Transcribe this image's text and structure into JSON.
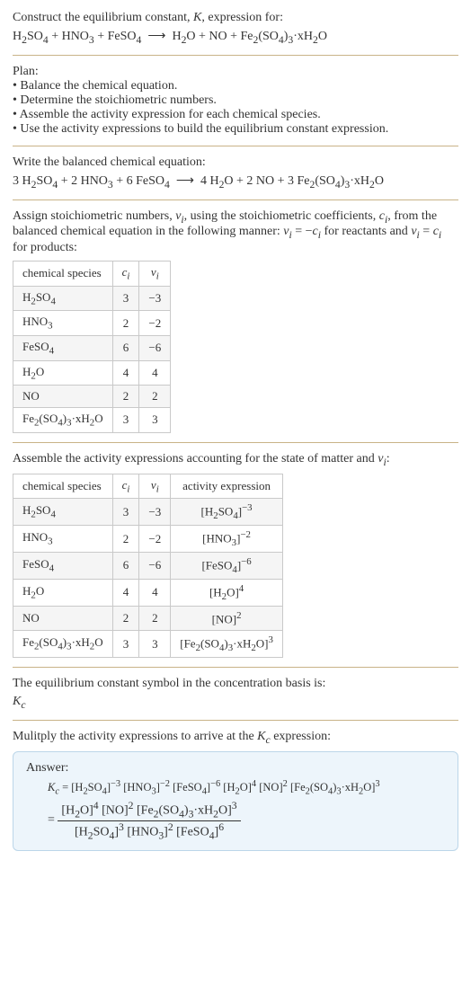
{
  "header": {
    "line1": "Construct the equilibrium constant, <i>K</i>, expression for:",
    "equation": "H<sub>2</sub>SO<sub>4</sub> + HNO<sub>3</sub> + FeSO<sub>4</sub> &nbsp;&#10230;&nbsp; H<sub>2</sub>O + NO + Fe<sub>2</sub>(SO<sub>4</sub>)<sub>3</sub>&middot;xH<sub>2</sub>O"
  },
  "plan": {
    "title": "Plan:",
    "items": [
      "&bull; Balance the chemical equation.",
      "&bull; Determine the stoichiometric numbers.",
      "&bull; Assemble the activity expression for each chemical species.",
      "&bull; Use the activity expressions to build the equilibrium constant expression."
    ]
  },
  "balanced": {
    "title": "Write the balanced chemical equation:",
    "equation": "3 H<sub>2</sub>SO<sub>4</sub> + 2 HNO<sub>3</sub> + 6 FeSO<sub>4</sub> &nbsp;&#10230;&nbsp; 4 H<sub>2</sub>O + 2 NO + 3 Fe<sub>2</sub>(SO<sub>4</sub>)<sub>3</sub>&middot;xH<sub>2</sub>O"
  },
  "stoich_intro": "Assign stoichiometric numbers, <i>&nu;<sub>i</sub></i>, using the stoichiometric coefficients, <i>c<sub>i</sub></i>, from the balanced chemical equation in the following manner: <i>&nu;<sub>i</sub></i> = &minus;<i>c<sub>i</sub></i> for reactants and <i>&nu;<sub>i</sub></i> = <i>c<sub>i</sub></i> for products:",
  "table1": {
    "headers": [
      "chemical species",
      "<i>c<sub>i</sub></i>",
      "<i>&nu;<sub>i</sub></i>"
    ],
    "rows": [
      [
        "H<sub>2</sub>SO<sub>4</sub>",
        "3",
        "&minus;3"
      ],
      [
        "HNO<sub>3</sub>",
        "2",
        "&minus;2"
      ],
      [
        "FeSO<sub>4</sub>",
        "6",
        "&minus;6"
      ],
      [
        "H<sub>2</sub>O",
        "4",
        "4"
      ],
      [
        "NO",
        "2",
        "2"
      ],
      [
        "Fe<sub>2</sub>(SO<sub>4</sub>)<sub>3</sub>&middot;xH<sub>2</sub>O",
        "3",
        "3"
      ]
    ]
  },
  "activity_intro": "Assemble the activity expressions accounting for the state of matter and <i>&nu;<sub>i</sub></i>:",
  "table2": {
    "headers": [
      "chemical species",
      "<i>c<sub>i</sub></i>",
      "<i>&nu;<sub>i</sub></i>",
      "activity expression"
    ],
    "rows": [
      [
        "H<sub>2</sub>SO<sub>4</sub>",
        "3",
        "&minus;3",
        "[H<sub>2</sub>SO<sub>4</sub>]<sup>&minus;3</sup>"
      ],
      [
        "HNO<sub>3</sub>",
        "2",
        "&minus;2",
        "[HNO<sub>3</sub>]<sup>&minus;2</sup>"
      ],
      [
        "FeSO<sub>4</sub>",
        "6",
        "&minus;6",
        "[FeSO<sub>4</sub>]<sup>&minus;6</sup>"
      ],
      [
        "H<sub>2</sub>O",
        "4",
        "4",
        "[H<sub>2</sub>O]<sup>4</sup>"
      ],
      [
        "NO",
        "2",
        "2",
        "[NO]<sup>2</sup>"
      ],
      [
        "Fe<sub>2</sub>(SO<sub>4</sub>)<sub>3</sub>&middot;xH<sub>2</sub>O",
        "3",
        "3",
        "[Fe<sub>2</sub>(SO<sub>4</sub>)<sub>3</sub>&middot;xH<sub>2</sub>O]<sup>3</sup>"
      ]
    ]
  },
  "basis": {
    "line1": "The equilibrium constant symbol in the concentration basis is:",
    "symbol": "<i>K<sub>c</sub></i>"
  },
  "multiply": "Mulitply the activity expressions to arrive at the <i>K<sub>c</sub></i> expression:",
  "answer": {
    "title": "Answer:",
    "line1": "<i>K<sub>c</sub></i> = [H<sub>2</sub>SO<sub>4</sub>]<sup>&minus;3</sup> [HNO<sub>3</sub>]<sup>&minus;2</sup> [FeSO<sub>4</sub>]<sup>&minus;6</sup> [H<sub>2</sub>O]<sup>4</sup> [NO]<sup>2</sup> [Fe<sub>2</sub>(SO<sub>4</sub>)<sub>3</sub>&middot;xH<sub>2</sub>O]<sup>3</sup>",
    "frac_num": "[H<sub>2</sub>O]<sup>4</sup> [NO]<sup>2</sup> [Fe<sub>2</sub>(SO<sub>4</sub>)<sub>3</sub>&middot;xH<sub>2</sub>O]<sup>3</sup>",
    "frac_den": "[H<sub>2</sub>SO<sub>4</sub>]<sup>3</sup> [HNO<sub>3</sub>]<sup>2</sup> [FeSO<sub>4</sub>]<sup>6</sup>"
  },
  "colors": {
    "divider": "#c9b388",
    "answer_bg": "#edf5fb",
    "answer_border": "#bcd6e9",
    "table_border": "#c9c9c9",
    "row_alt": "#f5f5f5",
    "text": "#333333"
  }
}
